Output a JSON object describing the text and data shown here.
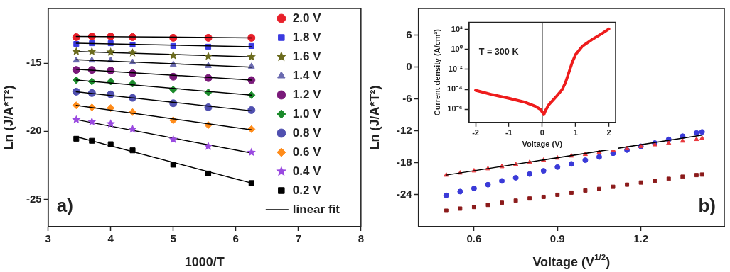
{
  "chart_data": [
    {
      "type": "scatter",
      "xlabel": "1000/T",
      "ylabel": "Ln (J/A*T²)",
      "xlim": [
        3,
        8
      ],
      "ylim": [
        -27,
        -11
      ],
      "xticks": [
        3,
        4,
        5,
        6,
        7,
        8
      ],
      "yticks": [
        -25,
        -20,
        -15
      ],
      "grid": false,
      "legend": "top right",
      "annotations": [
        "a)"
      ],
      "x": [
        3.45,
        3.7,
        4.0,
        4.35,
        5.0,
        5.56,
        6.25
      ],
      "series": [
        {
          "name": "2.0 V",
          "color": "#e8202a",
          "marker": "circle",
          "values": [
            -13.1,
            -13.05,
            -13.05,
            -13.1,
            -13.15,
            -13.15,
            -13.15
          ]
        },
        {
          "name": "1.8 V",
          "color": "#3a3ae0",
          "marker": "square",
          "values": [
            -13.6,
            -13.55,
            -13.55,
            -13.65,
            -13.75,
            -13.8,
            -13.75
          ]
        },
        {
          "name": "1.6 V",
          "color": "#6b6b1e",
          "marker": "star",
          "values": [
            -14.15,
            -14.15,
            -14.2,
            -14.25,
            -14.45,
            -14.5,
            -14.55
          ]
        },
        {
          "name": "1.4 V",
          "color": "#6a6ab0",
          "marker": "triangle",
          "values": [
            -14.8,
            -14.8,
            -14.8,
            -14.95,
            -15.1,
            -15.2,
            -15.25
          ]
        },
        {
          "name": "1.2 V",
          "color": "#7a1a7a",
          "marker": "circle",
          "values": [
            -15.5,
            -15.5,
            -15.55,
            -15.75,
            -16.0,
            -16.1,
            -16.25
          ]
        },
        {
          "name": "1.0 V",
          "color": "#1a8a2a",
          "marker": "diamond",
          "values": [
            -16.25,
            -16.35,
            -16.35,
            -16.5,
            -16.95,
            -17.15,
            -17.35
          ]
        },
        {
          "name": "0.8 V",
          "color": "#5050b0",
          "marker": "circle",
          "values": [
            -17.1,
            -17.2,
            -17.3,
            -17.55,
            -17.95,
            -18.25,
            -18.45
          ]
        },
        {
          "name": "0.6 V",
          "color": "#ff8c1a",
          "marker": "diamond",
          "values": [
            -18.1,
            -18.25,
            -18.3,
            -18.6,
            -19.2,
            -19.55,
            -19.85
          ]
        },
        {
          "name": "0.4 V",
          "color": "#9a4ae0",
          "marker": "star",
          "values": [
            -19.15,
            -19.3,
            -19.45,
            -19.85,
            -20.6,
            -21.1,
            -21.55
          ]
        },
        {
          "name": "0.2 V",
          "color": "#000000",
          "marker": "square",
          "values": [
            -20.55,
            -20.7,
            -20.95,
            -21.4,
            -22.45,
            -23.1,
            -23.8
          ]
        },
        {
          "name": "linear fit",
          "type": "line",
          "color": "#000000",
          "x": [
            3.45,
            6.25
          ],
          "values": [
            -13.05,
            -13.15
          ]
        },
        {
          "type": "line",
          "color": "#000000",
          "x": [
            3.45,
            6.25
          ],
          "values": [
            -13.55,
            -13.8
          ]
        },
        {
          "type": "line",
          "color": "#000000",
          "x": [
            3.45,
            6.25
          ],
          "values": [
            -14.15,
            -14.55
          ]
        },
        {
          "type": "line",
          "color": "#000000",
          "x": [
            3.45,
            6.25
          ],
          "values": [
            -14.75,
            -15.3
          ]
        },
        {
          "type": "line",
          "color": "#000000",
          "x": [
            3.45,
            6.25
          ],
          "values": [
            -15.45,
            -16.25
          ]
        },
        {
          "type": "line",
          "color": "#000000",
          "x": [
            3.45,
            6.25
          ],
          "values": [
            -16.25,
            -17.35
          ]
        },
        {
          "type": "line",
          "color": "#000000",
          "x": [
            3.45,
            6.25
          ],
          "values": [
            -17.1,
            -18.5
          ]
        },
        {
          "type": "line",
          "color": "#000000",
          "x": [
            3.45,
            6.25
          ],
          "values": [
            -18.1,
            -19.9
          ]
        },
        {
          "type": "line",
          "color": "#000000",
          "x": [
            3.45,
            6.25
          ],
          "values": [
            -19.15,
            -21.6
          ]
        },
        {
          "type": "line",
          "color": "#000000",
          "x": [
            3.45,
            6.25
          ],
          "values": [
            -20.4,
            -23.8
          ]
        }
      ]
    },
    {
      "type": "scatter",
      "xlabel": "Voltage (V$^{1/2}$)",
      "ylabel": "Ln (J/A*T²)",
      "xlim": [
        0.4,
        1.5
      ],
      "ylim": [
        -30,
        11
      ],
      "xticks": [
        0.6,
        0.9,
        1.2
      ],
      "yticks": [
        -24,
        -18,
        -12,
        -6,
        0,
        6
      ],
      "grid": false,
      "annotations": [
        "b)"
      ],
      "x": [
        0.5,
        0.55,
        0.6,
        0.65,
        0.7,
        0.75,
        0.8,
        0.85,
        0.9,
        0.95,
        1.0,
        1.05,
        1.1,
        1.15,
        1.2,
        1.25,
        1.3,
        1.35,
        1.4,
        1.42
      ],
      "series": [
        {
          "color": "#e8383d",
          "marker": "triangle",
          "values": [
            -20.3,
            -19.9,
            -19.5,
            -19.1,
            -18.7,
            -18.3,
            -17.9,
            -17.5,
            -17.1,
            -16.7,
            -16.4,
            -16.0,
            -15.6,
            -15.3,
            -14.9,
            -14.6,
            -14.3,
            -13.9,
            -13.6,
            -13.4
          ]
        },
        {
          "color": "#3a3ad8",
          "marker": "circle",
          "values": [
            -24.1,
            -23.4,
            -22.8,
            -22.1,
            -21.4,
            -20.8,
            -20.1,
            -19.5,
            -18.8,
            -18.2,
            -17.5,
            -16.9,
            -16.2,
            -15.6,
            -14.9,
            -14.3,
            -13.6,
            -13.0,
            -12.4,
            -12.2
          ]
        },
        {
          "color": "#8b1a1a",
          "marker": "square",
          "values": [
            -27.0,
            -26.6,
            -26.3,
            -25.9,
            -25.5,
            -25.1,
            -24.7,
            -24.4,
            -24.0,
            -23.6,
            -23.2,
            -22.9,
            -22.5,
            -22.1,
            -21.7,
            -21.4,
            -21.0,
            -20.6,
            -20.3,
            -20.2
          ]
        },
        {
          "type": "line",
          "color": "#000000",
          "x": [
            0.5,
            1.42
          ],
          "values": [
            -20.3,
            -12.8
          ]
        }
      ]
    },
    {
      "type": "line",
      "xlabel": "Voltage (V)",
      "ylabel": "Current density (A/cm²)",
      "log": "y",
      "xlim": [
        -2.2,
        2.2
      ],
      "ylim": [
        5e-08,
        500
      ],
      "xticks": [
        -2,
        -1,
        0,
        1,
        2
      ],
      "yticks": [
        {
          "value": 1e-06,
          "label": "10⁻⁶"
        },
        {
          "value": 0.0001,
          "label": "10⁻⁴"
        },
        {
          "value": 0.01,
          "label": "10⁻²"
        },
        {
          "value": 1,
          "label": "10⁰"
        },
        {
          "value": 100,
          "label": "10²"
        }
      ],
      "grid": false,
      "marker": "none",
      "annotations": [
        "T = 300 K"
      ],
      "ref_lines": [
        {
          "axis": "x",
          "value": 0,
          "color": "#000000"
        }
      ],
      "x": [
        -2,
        -1.5,
        -1,
        -0.5,
        -0.2,
        -0.05,
        0.05,
        0.1,
        0.2,
        0.4,
        0.6,
        0.7,
        0.8,
        0.9,
        1.0,
        1.2,
        1.5,
        1.8,
        2.0
      ],
      "series": [
        {
          "color": "#ee1c1c",
          "values": [
            8e-05,
            3e-05,
            1.3e-05,
            5e-06,
            2e-06,
            1e-06,
            3e-07,
            8e-07,
            3e-06,
            1.6e-05,
            0.0001,
            0.0005,
            0.005,
            0.05,
            0.3,
            2,
            10,
            40,
            110
          ]
        }
      ]
    }
  ]
}
